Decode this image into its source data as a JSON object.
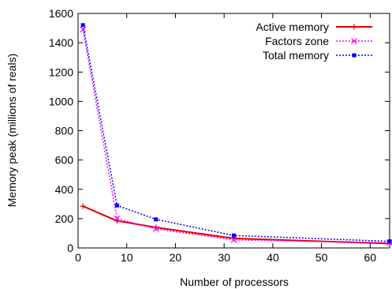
{
  "chart_data": {
    "type": "line",
    "xlabel": "Number of processors",
    "ylabel": "Memory peak (millions of reals)",
    "xlim": [
      0,
      64
    ],
    "ylim": [
      0,
      1600
    ],
    "x_ticks": [
      0,
      10,
      20,
      30,
      40,
      50,
      60
    ],
    "y_ticks": [
      0,
      200,
      400,
      600,
      800,
      1000,
      1200,
      1400,
      1600
    ],
    "x_tick_labels": [
      "0",
      "10",
      "20",
      "30",
      "40",
      "50",
      "60"
    ],
    "y_tick_labels": [
      "0",
      "200",
      "400",
      "600",
      "800",
      "1000",
      "1200",
      "1400",
      "1600"
    ],
    "grid": false,
    "legend_position": "top-right",
    "series": [
      {
        "name": "Active memory",
        "color": "#e00000",
        "line_style": "solid",
        "marker": "plus",
        "x": [
          1,
          8,
          16,
          32,
          64
        ],
        "y": [
          285,
          185,
          140,
          65,
          30
        ]
      },
      {
        "name": "Factors zone",
        "color": "#ff00ff",
        "line_style": "dotted",
        "marker": "cross",
        "x": [
          1,
          8,
          16,
          32,
          64
        ],
        "y": [
          1490,
          200,
          130,
          55,
          35
        ]
      },
      {
        "name": "Total memory",
        "color": "#0000ff",
        "line_style": "dotted",
        "marker": "square",
        "x": [
          1,
          8,
          16,
          32,
          64
        ],
        "y": [
          1520,
          290,
          195,
          85,
          45
        ]
      }
    ]
  }
}
